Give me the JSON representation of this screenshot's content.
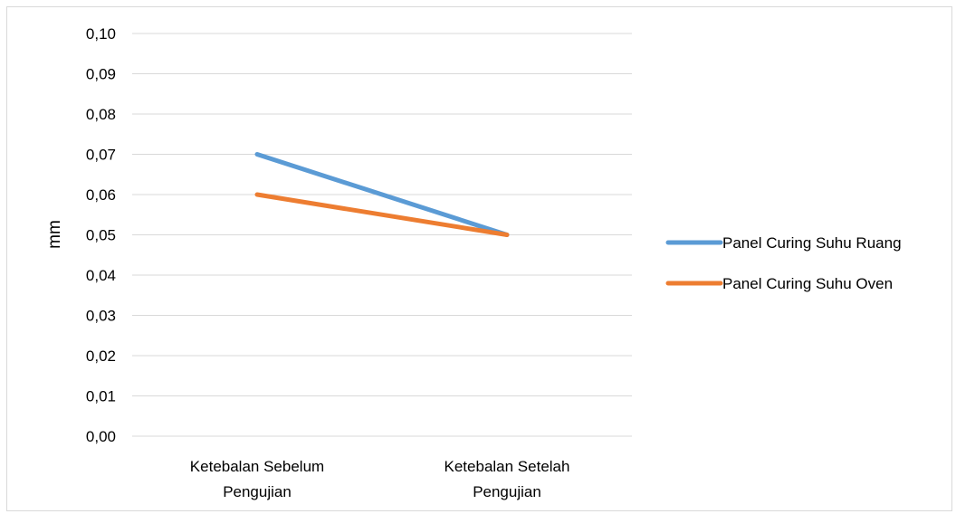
{
  "chart_data": {
    "type": "line",
    "title": "",
    "xlabel": "",
    "ylabel": "mm",
    "categories": [
      "Ketebalan Sebelum Pengujian",
      "Ketebalan Setelah Pengujian"
    ],
    "category_lines": [
      [
        "Ketebalan Sebelum",
        "Pengujian"
      ],
      [
        "Ketebalan Setelah",
        "Pengujian"
      ]
    ],
    "ylim": [
      0,
      0.1
    ],
    "y_ticks": [
      0.0,
      0.01,
      0.02,
      0.03,
      0.04,
      0.05,
      0.06,
      0.07,
      0.08,
      0.09,
      0.1
    ],
    "y_tick_labels": [
      "0,00",
      "0,01",
      "0,02",
      "0,03",
      "0,04",
      "0,05",
      "0,06",
      "0,07",
      "0,08",
      "0,09",
      "0,10"
    ],
    "grid": true,
    "legend_position": "right",
    "series": [
      {
        "name": "Panel Curing Suhu Ruang",
        "values": [
          0.07,
          0.05
        ],
        "color": "#5b9bd5"
      },
      {
        "name": "Panel Curing Suhu Oven",
        "values": [
          0.06,
          0.05
        ],
        "color": "#ed7d31"
      }
    ]
  }
}
